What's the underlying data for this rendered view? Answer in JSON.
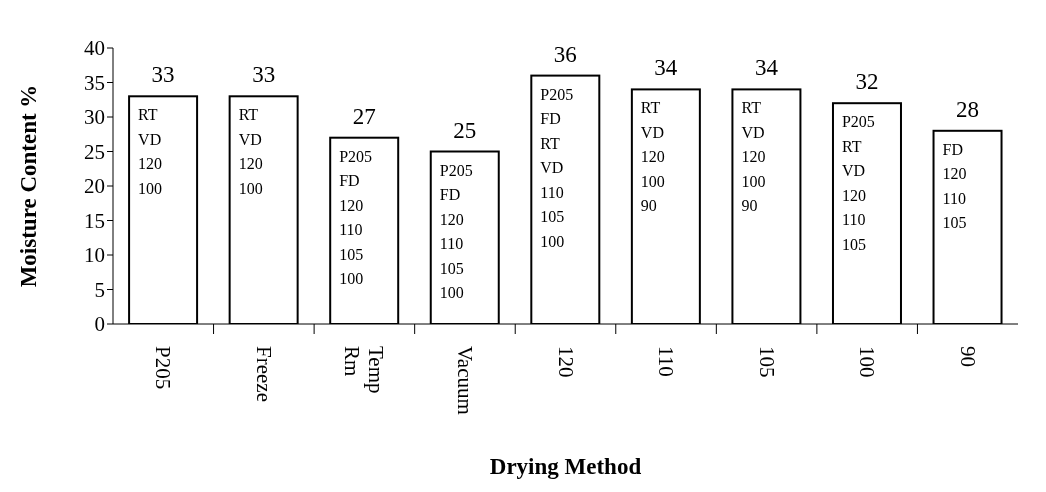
{
  "chart_data": {
    "type": "bar",
    "xlabel": "Drying Method",
    "ylabel": "Moisture Content %",
    "categories": [
      "P205",
      "Freeze",
      "Rm Temp",
      "Vacuum",
      "120",
      "110",
      "105",
      "100",
      "90"
    ],
    "values": [
      33,
      33,
      27,
      25,
      36,
      34,
      34,
      32,
      28
    ],
    "color": "#ffffff",
    "ylim": [
      0,
      40
    ],
    "yticks": [
      0,
      5,
      10,
      15,
      20,
      25,
      30,
      35,
      40
    ],
    "grid": false,
    "legend": false,
    "data_labels": true,
    "annotations": [
      {
        "text": "RT\nVD\n120\n100",
        "x": "P205",
        "y": 33
      },
      {
        "text": "RT\nVD\n120\n100",
        "x": "Freeze",
        "y": 33
      },
      {
        "text": "P205\nFD\n120\n110\n105\n100",
        "x": "Rm Temp",
        "y": 27
      },
      {
        "text": "P205\nFD\n120\n110\n105\n100",
        "x": "Vacuum",
        "y": 25
      },
      {
        "text": "P205\nFD\nRT\nVD\n110\n105\n100",
        "x": "120",
        "y": 36
      },
      {
        "text": "RT\nVD\n120\n100\n90",
        "x": "110",
        "y": 34
      },
      {
        "text": "RT\nVD\n120\n100\n90",
        "x": "105",
        "y": 34
      },
      {
        "text": "P205\nRT\nVD\n120\n110\n105",
        "x": "100",
        "y": 32
      },
      {
        "text": "FD\n120\n110\n105",
        "x": "90",
        "y": 28
      }
    ]
  }
}
